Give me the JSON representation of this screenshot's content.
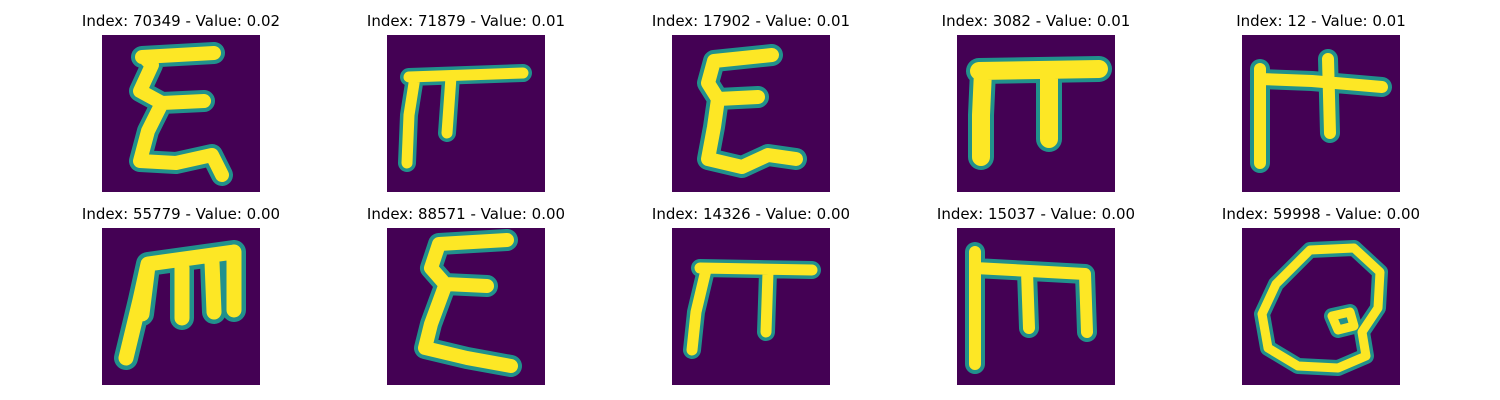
{
  "figure": {
    "panels": [
      {
        "title": "Index: 70349 - Value: 0.02",
        "glyph": "sigma-1"
      },
      {
        "title": "Index: 71879 - Value: 0.01",
        "glyph": "pi-1"
      },
      {
        "title": "Index: 17902 - Value: 0.01",
        "glyph": "sigma-2"
      },
      {
        "title": "Index: 3082 - Value: 0.01",
        "glyph": "pi-2"
      },
      {
        "title": "Index: 12 - Value: 0.01",
        "glyph": "pi-3"
      },
      {
        "title": "Index: 55779 - Value: 0.00",
        "glyph": "m-1"
      },
      {
        "title": "Index: 88571 - Value: 0.00",
        "glyph": "sigma-3"
      },
      {
        "title": "Index: 14326 - Value: 0.00",
        "glyph": "pi-4"
      },
      {
        "title": "Index: 15037 - Value: 0.00",
        "glyph": "m-2"
      },
      {
        "title": "Index: 59998 - Value: 0.00",
        "glyph": "loop-1"
      }
    ],
    "colors": {
      "background": "#440154",
      "stroke_core": "#fde725",
      "stroke_edge": "#21918c"
    }
  }
}
